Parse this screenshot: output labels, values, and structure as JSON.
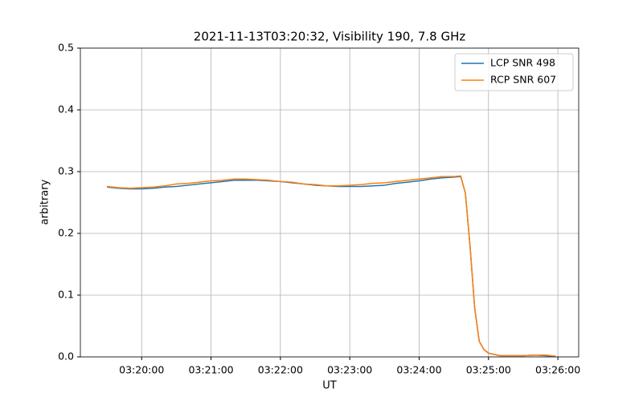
{
  "chart_data": {
    "type": "line",
    "title": "2021-11-13T03:20:32, Visibility 190, 7.8 GHz",
    "x_label": "UT",
    "y_label": "arbitrary",
    "x": [
      "03:19:30",
      "03:19:40",
      "03:19:50",
      "03:20:00",
      "03:20:10",
      "03:20:20",
      "03:20:30",
      "03:20:40",
      "03:20:50",
      "03:21:00",
      "03:21:10",
      "03:21:20",
      "03:21:30",
      "03:21:40",
      "03:21:50",
      "03:22:00",
      "03:22:10",
      "03:22:20",
      "03:22:30",
      "03:22:40",
      "03:22:50",
      "03:23:00",
      "03:23:10",
      "03:23:20",
      "03:23:30",
      "03:23:40",
      "03:23:50",
      "03:24:00",
      "03:24:10",
      "03:24:20",
      "03:24:30",
      "03:24:36",
      "03:24:40",
      "03:24:44",
      "03:24:48",
      "03:24:52",
      "03:24:56",
      "03:25:00",
      "03:25:10",
      "03:25:20",
      "03:25:30",
      "03:25:40",
      "03:25:50",
      "03:25:58"
    ],
    "series": [
      {
        "name": "LCP SNR 498",
        "color": "#1f77b4",
        "values": [
          0.275,
          0.273,
          0.272,
          0.272,
          0.273,
          0.275,
          0.276,
          0.278,
          0.28,
          0.282,
          0.284,
          0.286,
          0.286,
          0.286,
          0.285,
          0.284,
          0.282,
          0.28,
          0.278,
          0.277,
          0.276,
          0.276,
          0.276,
          0.277,
          0.278,
          0.281,
          0.283,
          0.285,
          0.288,
          0.29,
          0.291,
          0.292,
          0.265,
          0.18,
          0.08,
          0.025,
          0.012,
          0.006,
          0.002,
          0.002,
          0.002,
          0.003,
          0.002,
          0.001
        ]
      },
      {
        "name": "RCP SNR 607",
        "color": "#ff7f0e",
        "values": [
          0.276,
          0.274,
          0.273,
          0.274,
          0.275,
          0.277,
          0.28,
          0.281,
          0.283,
          0.285,
          0.286,
          0.288,
          0.288,
          0.287,
          0.286,
          0.284,
          0.283,
          0.28,
          0.279,
          0.277,
          0.277,
          0.278,
          0.279,
          0.281,
          0.282,
          0.284,
          0.286,
          0.288,
          0.29,
          0.292,
          0.292,
          0.293,
          0.265,
          0.18,
          0.08,
          0.025,
          0.012,
          0.006,
          0.002,
          0.002,
          0.002,
          0.003,
          0.003,
          0.001
        ]
      }
    ],
    "xlim": [
      "03:19:07",
      "03:26:18"
    ],
    "xticks": [
      "03:20:00",
      "03:21:00",
      "03:22:00",
      "03:23:00",
      "03:24:00",
      "03:25:00",
      "03:26:00"
    ],
    "ylim": [
      0,
      0.5
    ],
    "yticks": [
      {
        "value": 0,
        "label": "0.0"
      },
      0.1,
      0.2,
      0.3,
      0.4,
      0.5
    ],
    "grid": true,
    "legend": "upper-right"
  }
}
